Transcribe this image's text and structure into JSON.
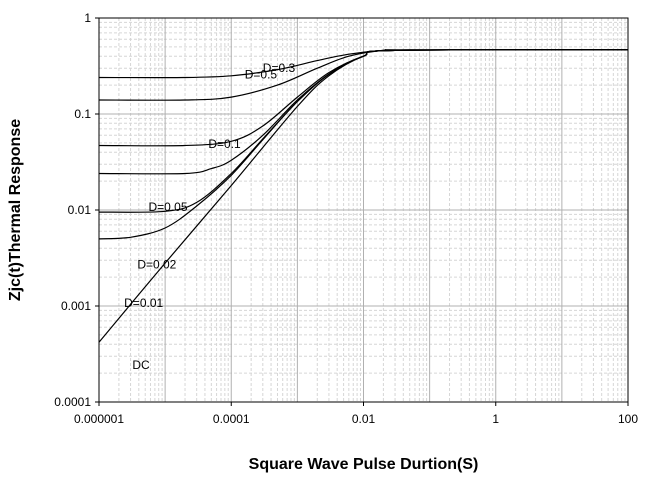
{
  "chart_data": {
    "type": "line",
    "title": "",
    "xlabel": "Square Wave Pulse Durtion(S)",
    "ylabel": "Zjc(t)Thermal Response",
    "x_scale": "log",
    "y_scale": "log",
    "xlim": [
      1e-06,
      100
    ],
    "ylim": [
      0.0001,
      1
    ],
    "x_tick_labels": [
      "0.000001",
      "0.0001",
      "0.01",
      "1",
      "100"
    ],
    "y_tick_labels": [
      "1",
      "0.1",
      "0.01",
      "0.001",
      "0.0001"
    ],
    "grid": true,
    "colors": {
      "line": "#000000",
      "grid_major": "#b0b0b0",
      "grid_minor": "#d6d6d6",
      "axes": "#000000"
    },
    "series": [
      {
        "name": "D=0.5",
        "x": [
          1e-06,
          2e-05,
          0.0001,
          0.0005,
          0.002,
          0.006,
          0.02,
          0.05,
          100
        ],
        "y": [
          0.24,
          0.24,
          0.25,
          0.29,
          0.36,
          0.42,
          0.46,
          0.465,
          0.465
        ]
      },
      {
        "name": "D=0.3",
        "x": [
          1e-06,
          2e-05,
          0.0001,
          0.0005,
          0.002,
          0.006,
          0.02,
          0.05,
          100
        ],
        "y": [
          0.14,
          0.14,
          0.15,
          0.2,
          0.3,
          0.4,
          0.46,
          0.465,
          0.465
        ]
      },
      {
        "name": "D=0.1",
        "x": [
          1e-06,
          2e-05,
          0.0001,
          0.0003,
          0.001,
          0.003,
          0.01,
          0.03,
          100
        ],
        "y": [
          0.047,
          0.047,
          0.052,
          0.075,
          0.15,
          0.27,
          0.4,
          0.46,
          0.465
        ]
      },
      {
        "name": "D=0.05",
        "x": [
          1e-06,
          2e-05,
          5e-05,
          0.0001,
          0.0003,
          0.001,
          0.003,
          0.01,
          0.03,
          100
        ],
        "y": [
          0.024,
          0.024,
          0.027,
          0.033,
          0.06,
          0.14,
          0.26,
          0.4,
          0.46,
          0.465
        ]
      },
      {
        "name": "D=0.02",
        "x": [
          1e-06,
          1e-05,
          3e-05,
          0.0001,
          0.0003,
          0.001,
          0.003,
          0.01,
          0.03,
          100
        ],
        "y": [
          0.0095,
          0.0097,
          0.012,
          0.024,
          0.055,
          0.135,
          0.26,
          0.4,
          0.46,
          0.465
        ]
      },
      {
        "name": "D=0.01",
        "x": [
          1e-06,
          3e-06,
          1e-05,
          3e-05,
          0.0001,
          0.0003,
          0.001,
          0.003,
          0.01,
          0.03,
          100
        ],
        "y": [
          0.005,
          0.0052,
          0.0065,
          0.011,
          0.023,
          0.054,
          0.135,
          0.26,
          0.4,
          0.46,
          0.465
        ]
      },
      {
        "name": "DC",
        "x": [
          1e-06,
          1e-05,
          0.0001,
          0.001,
          0.003,
          0.01,
          0.03,
          100
        ],
        "y": [
          0.00042,
          0.0028,
          0.018,
          0.12,
          0.25,
          0.4,
          0.46,
          0.465
        ]
      }
    ],
    "annotations": [
      "D=0.3",
      "D=0.5",
      "D=0.1",
      "D=0.05",
      "D=0.02",
      "D=0.01",
      "DC"
    ]
  }
}
